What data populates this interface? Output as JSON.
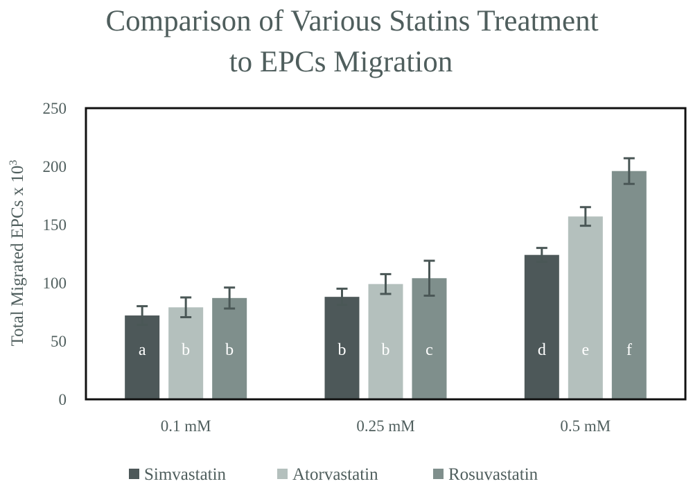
{
  "chart_data": {
    "type": "bar",
    "title_lines": [
      "Comparison of Various Statins Treatment",
      "to EPCs Migration"
    ],
    "xlabel": "",
    "ylabel": "Total Migrated EPCs x 10",
    "ylabel_superscript": "3",
    "ylim": [
      0,
      250
    ],
    "yticks": [
      0,
      50,
      100,
      150,
      200,
      250
    ],
    "grid": false,
    "categories": [
      "0.1 mM",
      "0.25 mM",
      "0.5 mM"
    ],
    "series": [
      {
        "name": "Simvastatin",
        "color": "#4d5859",
        "values": [
          72,
          88,
          124
        ],
        "errors": [
          8,
          7,
          6
        ],
        "letters": [
          "a",
          "b",
          "d"
        ]
      },
      {
        "name": "Atorvastatin",
        "color": "#b4c0bd",
        "values": [
          79,
          99,
          157
        ],
        "errors": [
          8.5,
          8.5,
          8
        ],
        "letters": [
          "b",
          "b",
          "e"
        ]
      },
      {
        "name": "Rosuvastatin",
        "color": "#7f8f8c",
        "values": [
          87,
          104,
          196
        ],
        "errors": [
          9,
          15,
          11
        ],
        "letters": [
          "b",
          "c",
          "f"
        ]
      }
    ],
    "legend_position": "bottom",
    "errorbar_color": "#4a5756"
  }
}
